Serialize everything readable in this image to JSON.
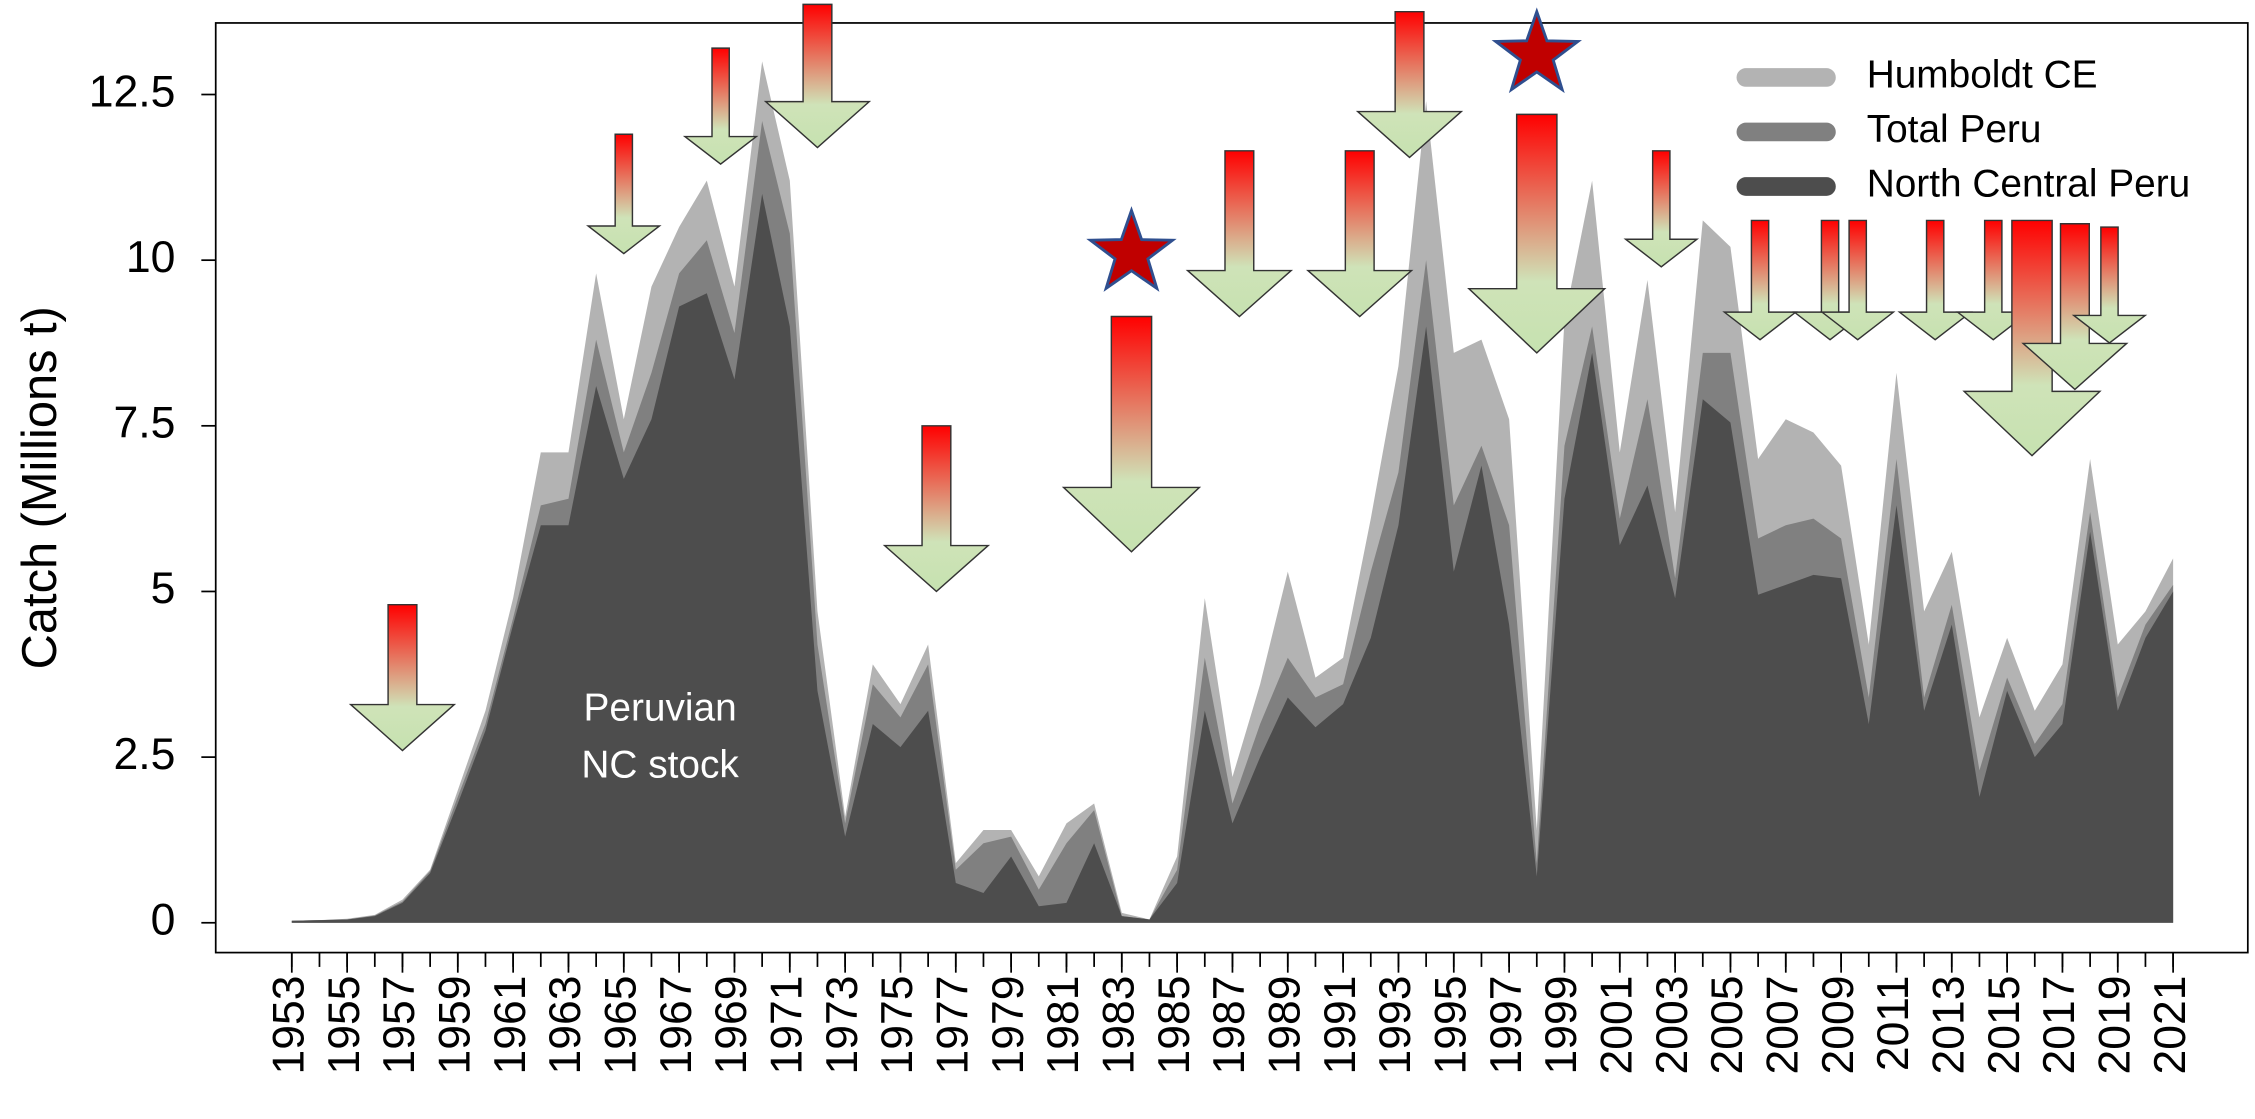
{
  "chart_data": {
    "type": "area",
    "y_label": "Catch (Millions t)",
    "x": [
      1953,
      1954,
      1955,
      1956,
      1957,
      1958,
      1959,
      1960,
      1961,
      1962,
      1963,
      1964,
      1965,
      1966,
      1967,
      1968,
      1969,
      1970,
      1971,
      1972,
      1973,
      1974,
      1975,
      1976,
      1977,
      1978,
      1979,
      1980,
      1981,
      1982,
      1983,
      1984,
      1985,
      1986,
      1987,
      1988,
      1989,
      1990,
      1991,
      1992,
      1993,
      1994,
      1995,
      1996,
      1997,
      1998,
      1999,
      2000,
      2001,
      2002,
      2003,
      2004,
      2005,
      2006,
      2007,
      2008,
      2009,
      2010,
      2011,
      2012,
      2013,
      2014,
      2015,
      2016,
      2017,
      2018,
      2019,
      2020,
      2021
    ],
    "series": [
      {
        "name": "Humboldt CE",
        "color": "#b3b3b3",
        "values": [
          0.03,
          0.04,
          0.06,
          0.12,
          0.35,
          0.8,
          2.0,
          3.2,
          4.9,
          7.1,
          7.1,
          9.8,
          7.6,
          9.6,
          10.5,
          11.2,
          9.6,
          13.0,
          11.2,
          4.7,
          1.6,
          3.9,
          3.3,
          4.2,
          0.9,
          1.4,
          1.4,
          0.7,
          1.5,
          1.8,
          0.15,
          0.05,
          1.0,
          4.9,
          2.2,
          3.6,
          5.3,
          3.7,
          4.0,
          6.1,
          8.4,
          12.4,
          8.6,
          8.8,
          7.6,
          1.4,
          9.1,
          11.2,
          7.1,
          9.7,
          6.2,
          10.6,
          10.2,
          7.0,
          7.6,
          7.4,
          6.9,
          4.2,
          8.3,
          4.7,
          5.6,
          3.1,
          4.3,
          3.2,
          3.9,
          7.0,
          4.2,
          4.7,
          5.5
        ]
      },
      {
        "name": "Total Peru",
        "color": "#808080",
        "values": [
          0.03,
          0.04,
          0.05,
          0.11,
          0.32,
          0.78,
          1.9,
          3.0,
          4.6,
          6.3,
          6.4,
          8.8,
          7.1,
          8.3,
          9.8,
          10.3,
          8.9,
          12.1,
          10.4,
          4.2,
          1.5,
          3.6,
          3.1,
          3.9,
          0.8,
          1.2,
          1.3,
          0.5,
          1.2,
          1.7,
          0.1,
          0.05,
          0.8,
          4.0,
          1.8,
          3.0,
          4.0,
          3.4,
          3.6,
          5.3,
          6.8,
          10.0,
          6.3,
          7.2,
          6.0,
          0.9,
          7.2,
          9.0,
          6.1,
          7.9,
          5.2,
          8.6,
          8.6,
          5.8,
          6.0,
          6.1,
          5.8,
          3.4,
          7.0,
          3.4,
          4.8,
          2.3,
          3.7,
          2.7,
          3.3,
          6.2,
          3.4,
          4.5,
          5.1
        ]
      },
      {
        "name": "North Central Peru",
        "color": "#4d4d4d",
        "values": [
          0.03,
          0.04,
          0.05,
          0.1,
          0.3,
          0.75,
          1.8,
          2.9,
          4.5,
          6.0,
          6.0,
          8.1,
          6.7,
          7.6,
          9.3,
          9.5,
          8.2,
          11.0,
          9.0,
          3.5,
          1.3,
          3.0,
          2.65,
          3.2,
          0.6,
          0.45,
          1.0,
          0.25,
          0.3,
          1.2,
          0.1,
          0.05,
          0.6,
          3.2,
          1.5,
          2.5,
          3.4,
          2.95,
          3.3,
          4.3,
          6.0,
          9.0,
          5.3,
          6.9,
          4.5,
          0.7,
          6.4,
          8.6,
          5.7,
          6.6,
          4.9,
          7.9,
          7.55,
          4.95,
          5.1,
          5.25,
          5.2,
          3.0,
          6.3,
          3.2,
          4.5,
          1.9,
          3.5,
          2.5,
          3.0,
          5.9,
          3.2,
          4.3,
          5.0
        ]
      }
    ],
    "xlim": [
      1950.25,
      2023.7
    ],
    "xticks": [
      1953,
      1955,
      1957,
      1959,
      1961,
      1963,
      1965,
      1967,
      1969,
      1971,
      1973,
      1975,
      1977,
      1979,
      1981,
      1983,
      1985,
      1987,
      1989,
      1991,
      1993,
      1995,
      1997,
      1999,
      2001,
      2003,
      2005,
      2007,
      2009,
      2011,
      2013,
      2015,
      2017,
      2019,
      2021
    ],
    "ylim": [
      -0.45,
      13.58
    ],
    "yticks": [
      0,
      2.5,
      5,
      7.5,
      10,
      12.5
    ],
    "legend": "upper right",
    "annotation": [
      "Peruvian",
      "NC stock"
    ],
    "arrows": [
      {
        "x": 1957,
        "top": 4.8,
        "bottom": 2.6
      },
      {
        "x": 1965,
        "top": 11.9,
        "bottom": 10.1
      },
      {
        "x": 1968.5,
        "top": 13.2,
        "bottom": 11.45
      },
      {
        "x": 1972,
        "top": 13.86,
        "bottom": 11.7
      },
      {
        "x": 1976.3,
        "top": 7.5,
        "bottom": 5.0
      },
      {
        "x": 1983.35,
        "top": 9.15,
        "bottom": 5.6
      },
      {
        "x": 1987.25,
        "top": 11.65,
        "bottom": 9.15
      },
      {
        "x": 1991.6,
        "top": 11.65,
        "bottom": 9.15
      },
      {
        "x": 1993.4,
        "top": 13.75,
        "bottom": 11.55
      },
      {
        "x": 1998,
        "top": 12.2,
        "bottom": 8.6
      },
      {
        "x": 2002.5,
        "top": 11.65,
        "bottom": 9.9
      },
      {
        "x": 2006.07,
        "top": 10.6,
        "bottom": 8.8
      },
      {
        "x": 2008.6,
        "top": 10.6,
        "bottom": 8.8
      },
      {
        "x": 2009.6,
        "top": 10.6,
        "bottom": 8.8
      },
      {
        "x": 2012.4,
        "top": 10.6,
        "bottom": 8.8
      },
      {
        "x": 2014.5,
        "top": 10.6,
        "bottom": 8.8
      },
      {
        "x": 2015.9,
        "top": 10.6,
        "bottom": 7.05
      },
      {
        "x": 2017.45,
        "top": 10.55,
        "bottom": 8.05
      },
      {
        "x": 2018.7,
        "top": 10.5,
        "bottom": 8.75
      }
    ],
    "stars": [
      {
        "x": 1983.35,
        "y": 10.1
      },
      {
        "x": 1998,
        "y": 13.1
      }
    ]
  }
}
